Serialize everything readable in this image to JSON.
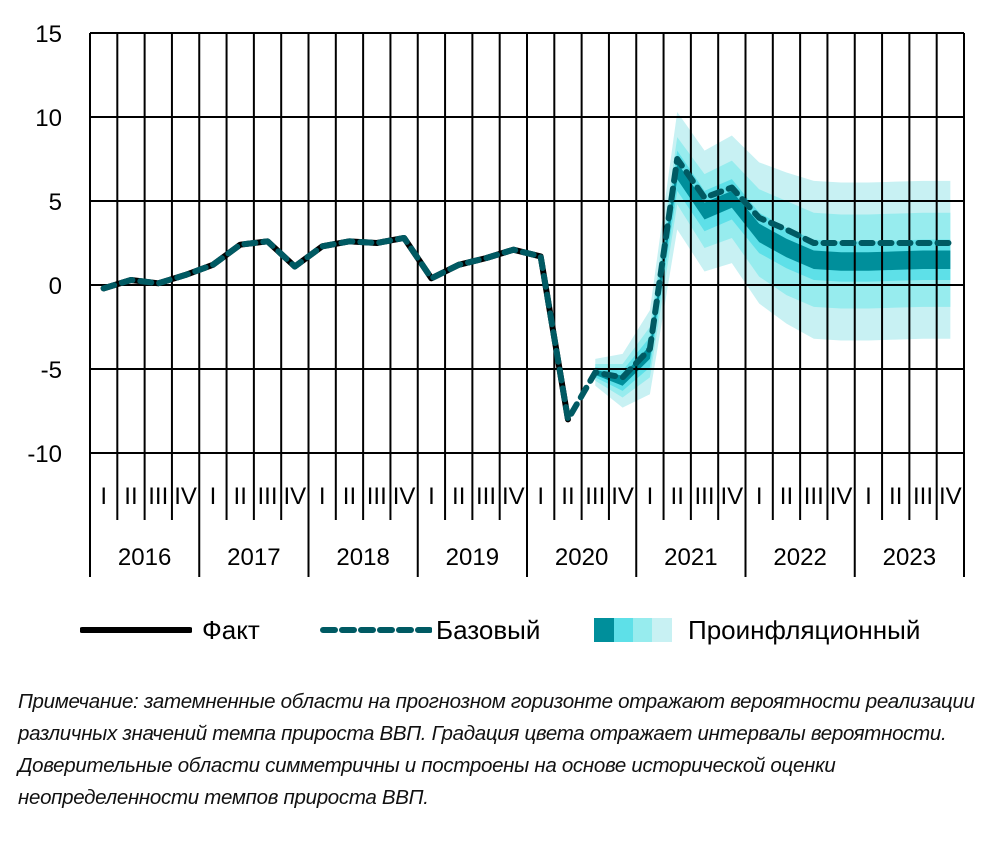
{
  "chart_data": {
    "type": "line",
    "title": "",
    "xlabel": "",
    "ylabel": "",
    "ylim": [
      -10,
      15
    ],
    "yticks": [
      15,
      10,
      5,
      0,
      -5,
      -10
    ],
    "ytick_labels": [
      "15",
      "10",
      "5",
      "0",
      "-5",
      "-10"
    ],
    "grid": true,
    "years": [
      "2016",
      "2017",
      "2018",
      "2019",
      "2020",
      "2021",
      "2022",
      "2023"
    ],
    "quarters": [
      "I",
      "II",
      "III",
      "IV"
    ],
    "series": [
      {
        "name": "Факт",
        "style": "solid",
        "color": "#000000",
        "start_index": 0,
        "values": [
          -0.2,
          0.3,
          0.1,
          0.6,
          1.2,
          2.4,
          2.6,
          1.1,
          2.3,
          2.6,
          2.5,
          2.8,
          0.4,
          1.2,
          1.6,
          2.1,
          1.7,
          -8.0
        ]
      },
      {
        "name": "Базовый",
        "style": "dashed",
        "color": "#005a63",
        "start_index": 0,
        "values": [
          -0.2,
          0.3,
          0.1,
          0.6,
          1.2,
          2.4,
          2.6,
          1.1,
          2.3,
          2.6,
          2.5,
          2.8,
          0.4,
          1.2,
          1.6,
          2.1,
          1.7,
          -8.0,
          -5.2,
          -5.5,
          -3.8,
          7.5,
          5.2,
          5.8,
          4.0,
          3.3,
          2.5,
          2.5,
          2.5,
          2.5,
          2.5,
          2.5
        ]
      }
    ],
    "fan": {
      "name": "Проинфляционный",
      "start_index": 18,
      "center": [
        -5.2,
        -5.7,
        -4.0,
        6.8,
        4.4,
        5.1,
        3.1,
        2.2,
        1.5,
        1.4,
        1.4,
        1.45,
        1.5,
        1.5
      ],
      "bands": [
        {
          "color": "#c8f1f3",
          "half_width": [
            0.8,
            1.6,
            2.5,
            3.5,
            3.6,
            3.8,
            4.2,
            4.5,
            4.7,
            4.7,
            4.7,
            4.7,
            4.7,
            4.7
          ]
        },
        {
          "color": "#97ecee",
          "half_width": [
            0.5,
            1.0,
            1.5,
            2.0,
            2.2,
            2.3,
            2.6,
            2.8,
            2.8,
            2.8,
            2.8,
            2.8,
            2.8,
            2.8
          ]
        },
        {
          "color": "#5ee0e8",
          "half_width": [
            0.3,
            0.6,
            0.9,
            1.2,
            1.2,
            1.2,
            1.2,
            1.2,
            1.2,
            1.2,
            1.2,
            1.2,
            1.2,
            1.2
          ]
        },
        {
          "color": "#008f9b",
          "half_width": [
            0.15,
            0.3,
            0.4,
            0.5,
            0.5,
            0.5,
            0.55,
            0.55,
            0.55,
            0.55,
            0.55,
            0.55,
            0.55,
            0.55
          ]
        }
      ]
    }
  },
  "legend": {
    "fact": "Факт",
    "base": "Базовый",
    "proinfl": "Проинфляционный"
  },
  "note": "Примечание: затемненные области на прогнозном горизонте отражают вероятности реализации различных значений темпа прироста ВВП. Градация цвета отражает интервалы вероятности. Доверительные области симметричны и построены на основе исторической оценки неопределенности темпов прироста ВВП."
}
